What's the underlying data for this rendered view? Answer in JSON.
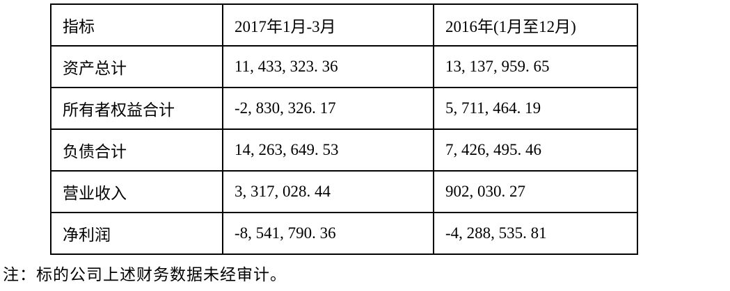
{
  "table": {
    "headers": {
      "indicator": "指标",
      "period_2017": "2017年1月-3月",
      "period_2016": "2016年(1月至12月)"
    },
    "rows": [
      {
        "label": "资产总计",
        "v2017": "11, 433, 323. 36",
        "v2016": "13, 137, 959. 65"
      },
      {
        "label": "所有者权益合计",
        "v2017": "-2, 830, 326. 17",
        "v2016": "5, 711, 464. 19"
      },
      {
        "label": "负债合计",
        "v2017": "14, 263, 649. 53",
        "v2016": "7, 426, 495. 46"
      },
      {
        "label": "营业收入",
        "v2017": "3, 317, 028. 44",
        "v2016": "902, 030. 27"
      },
      {
        "label": "净利润",
        "v2017": "-8, 541, 790. 36",
        "v2016": "-4, 288, 535. 81"
      }
    ]
  },
  "note": "注：标的公司上述财务数据未经审计。",
  "colors": {
    "border": "#000000",
    "text": "#000000",
    "background": "#ffffff"
  }
}
